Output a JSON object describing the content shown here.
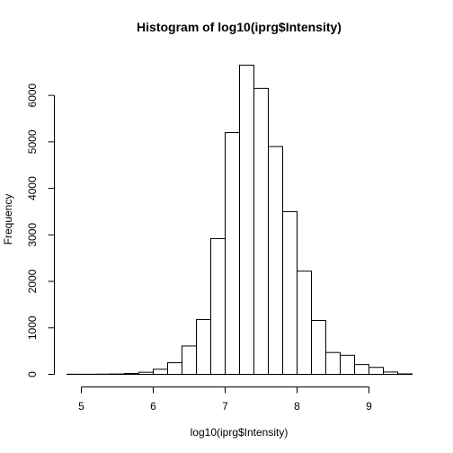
{
  "chart_data": {
    "type": "bar",
    "title": "Histogram of log10(iprg$Intensity)",
    "xlabel": "log10(iprg$Intensity)",
    "ylabel": "Frequency",
    "bin_edges": [
      4.8,
      5.0,
      5.2,
      5.4,
      5.6,
      5.8,
      6.0,
      6.2,
      6.4,
      6.6,
      6.8,
      7.0,
      7.2,
      7.4,
      7.6,
      7.8,
      8.0,
      8.2,
      8.4,
      8.6,
      8.8,
      9.0,
      9.2,
      9.4,
      9.6
    ],
    "values": [
      3,
      2,
      5,
      8,
      20,
      45,
      110,
      250,
      610,
      1180,
      2920,
      5200,
      6650,
      6150,
      4900,
      3500,
      2220,
      1160,
      470,
      410,
      210,
      150,
      50,
      10
    ],
    "xlim": [
      4.8,
      9.6
    ],
    "ylim": [
      0,
      6650
    ],
    "x_ticks": [
      5,
      6,
      7,
      8,
      9
    ],
    "y_ticks": [
      0,
      1000,
      2000,
      3000,
      4000,
      5000,
      6000
    ],
    "grid": false,
    "legend": "none"
  }
}
